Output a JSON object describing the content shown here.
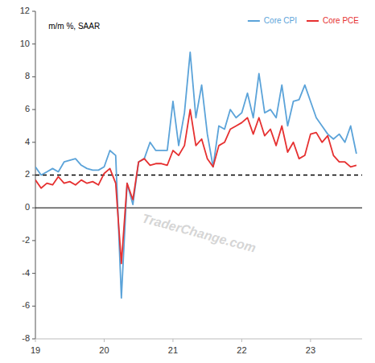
{
  "chart_data": {
    "type": "line",
    "ylabel": "m/m %, SAAR",
    "watermark": "TraderChange.com",
    "xlim": [
      2019.0,
      2023.75
    ],
    "xticks": [
      {
        "value": 2019,
        "label": "19"
      },
      {
        "value": 2020,
        "label": "20"
      },
      {
        "value": 2021,
        "label": "21"
      },
      {
        "value": 2022,
        "label": "22"
      },
      {
        "value": 2023,
        "label": "23"
      }
    ],
    "ylim": [
      -8,
      12
    ],
    "yticks": [
      -8,
      -6,
      -4,
      -2,
      0,
      2,
      4,
      6,
      8,
      10,
      12
    ],
    "grid": false,
    "legend": "upper right",
    "hlines": [
      {
        "value": 2,
        "line_style": "dashed",
        "color": "#000000"
      },
      {
        "value": 0,
        "line_style": "solid",
        "color": "#000000"
      }
    ],
    "x": [
      2019.0,
      2019.083,
      2019.167,
      2019.25,
      2019.333,
      2019.417,
      2019.5,
      2019.583,
      2019.667,
      2019.75,
      2019.833,
      2019.917,
      2020.0,
      2020.083,
      2020.167,
      2020.25,
      2020.333,
      2020.417,
      2020.5,
      2020.583,
      2020.667,
      2020.75,
      2020.833,
      2020.917,
      2021.0,
      2021.083,
      2021.167,
      2021.25,
      2021.333,
      2021.417,
      2021.5,
      2021.583,
      2021.667,
      2021.75,
      2021.833,
      2021.917,
      2022.0,
      2022.083,
      2022.167,
      2022.25,
      2022.333,
      2022.417,
      2022.5,
      2022.583,
      2022.667,
      2022.75,
      2022.833,
      2022.917,
      2023.0,
      2023.083,
      2023.167,
      2023.25,
      2023.333,
      2023.417,
      2023.5,
      2023.583,
      2023.667
    ],
    "series": [
      {
        "name": "Core CPI",
        "color": "#5ba3d9",
        "values": [
          2.5,
          2.0,
          2.2,
          2.4,
          2.2,
          2.8,
          2.9,
          3.0,
          2.6,
          2.4,
          2.3,
          2.3,
          2.5,
          3.5,
          3.2,
          -5.5,
          1.5,
          0.2,
          2.8,
          3.0,
          4.0,
          3.5,
          3.5,
          3.5,
          6.5,
          3.8,
          5.8,
          9.5,
          5.5,
          7.5,
          4.5,
          2.5,
          5.0,
          4.8,
          6.0,
          5.5,
          5.8,
          7.0,
          5.5,
          8.2,
          5.8,
          6.0,
          5.5,
          7.5,
          5.0,
          6.5,
          6.6,
          7.5,
          6.5,
          5.5,
          5.0,
          4.5,
          4.2,
          4.5,
          4.0,
          5.0,
          3.3
        ]
      },
      {
        "name": "Core PCE",
        "color": "#e63030",
        "values": [
          1.7,
          1.2,
          1.5,
          1.4,
          1.9,
          1.5,
          1.6,
          1.4,
          1.7,
          1.5,
          1.6,
          1.4,
          2.1,
          2.4,
          1.5,
          -3.4,
          1.5,
          0.5,
          2.8,
          3.0,
          2.6,
          2.7,
          2.7,
          2.6,
          3.5,
          3.2,
          3.8,
          6.0,
          3.8,
          4.2,
          3.0,
          2.5,
          3.8,
          4.0,
          4.8,
          5.0,
          5.2,
          5.5,
          4.5,
          5.5,
          4.4,
          4.8,
          3.8,
          5.0,
          3.4,
          4.0,
          3.0,
          3.2,
          4.5,
          4.6,
          4.0,
          4.4,
          3.2,
          2.8,
          2.8,
          2.5,
          2.6
        ]
      }
    ]
  }
}
